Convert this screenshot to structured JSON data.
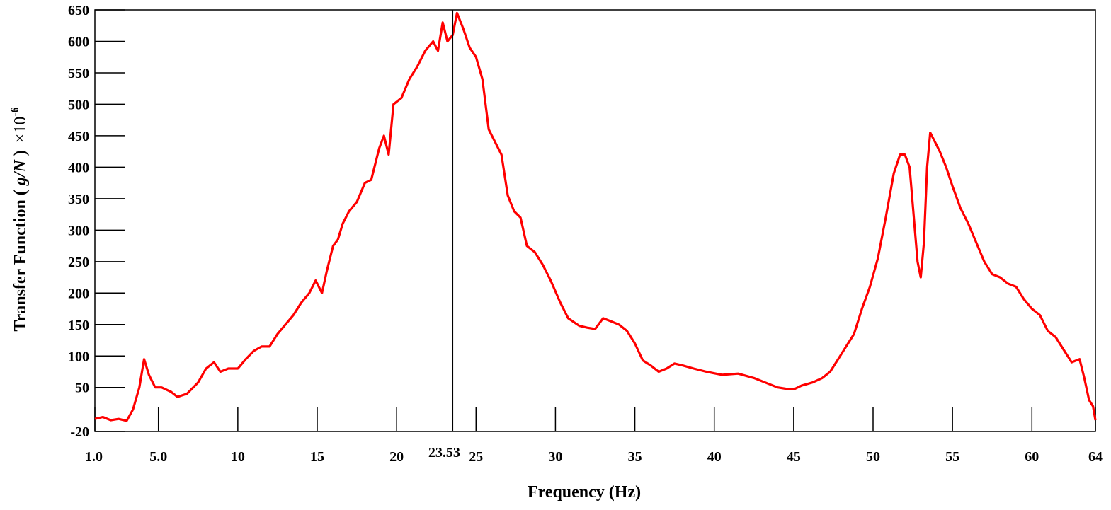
{
  "chart_data": {
    "type": "line",
    "xlabel": "Frequency (Hz)",
    "ylabel_main": "Transfer Function ( ",
    "ylabel_var": "g/N",
    "ylabel_close": " )",
    "ylabel_scale": "×10",
    "ylabel_exp": "-6",
    "xlim": [
      1.0,
      64
    ],
    "ylim": [
      -20,
      650
    ],
    "grid": false,
    "line_color": "#ff0000",
    "x_ticks": [
      {
        "value": 1.0,
        "label": "1.0"
      },
      {
        "value": 5.0,
        "label": "5.0"
      },
      {
        "value": 10,
        "label": "10"
      },
      {
        "value": 15,
        "label": "15"
      },
      {
        "value": 20,
        "label": "20"
      },
      {
        "value": 25,
        "label": "25"
      },
      {
        "value": 30,
        "label": "30"
      },
      {
        "value": 35,
        "label": "35"
      },
      {
        "value": 40,
        "label": "40"
      },
      {
        "value": 45,
        "label": "45"
      },
      {
        "value": 50,
        "label": "50"
      },
      {
        "value": 55,
        "label": "55"
      },
      {
        "value": 60,
        "label": "60"
      },
      {
        "value": 64,
        "label": "64"
      }
    ],
    "y_ticks": [
      {
        "value": -20,
        "label": "-20"
      },
      {
        "value": 50,
        "label": "50"
      },
      {
        "value": 100,
        "label": "100"
      },
      {
        "value": 150,
        "label": "150"
      },
      {
        "value": 200,
        "label": "200"
      },
      {
        "value": 250,
        "label": "250"
      },
      {
        "value": 300,
        "label": "300"
      },
      {
        "value": 350,
        "label": "350"
      },
      {
        "value": 400,
        "label": "400"
      },
      {
        "value": 450,
        "label": "450"
      },
      {
        "value": 500,
        "label": "500"
      },
      {
        "value": 550,
        "label": "550"
      },
      {
        "value": 600,
        "label": "600"
      },
      {
        "value": 650,
        "label": "650"
      }
    ],
    "marker": {
      "x": 23.53,
      "label": "23.53"
    },
    "series": [
      {
        "x": [
          1.0,
          1.5,
          2.0,
          2.5,
          3.0,
          3.4,
          3.8,
          4.1,
          4.4,
          4.8,
          5.2,
          5.8,
          6.2,
          6.8,
          7.5,
          8.0,
          8.5,
          8.9,
          9.4,
          10.0,
          10.5,
          11.0,
          11.5,
          12.0,
          12.5,
          13.0,
          13.5,
          14.0,
          14.5,
          14.9,
          15.3,
          15.6,
          16.0,
          16.3,
          16.6,
          17.0,
          17.5,
          18.0,
          18.4,
          18.9,
          19.2,
          19.5,
          19.8,
          20.3,
          20.8,
          21.3,
          21.8,
          22.3,
          22.6,
          22.9,
          23.2,
          23.53,
          23.8,
          24.2,
          24.6,
          25.0,
          25.4,
          25.8,
          26.2,
          26.6,
          27.0,
          27.4,
          27.8,
          28.2,
          28.7,
          29.2,
          29.7,
          30.3,
          30.8,
          31.5,
          32.0,
          32.5,
          33.0,
          33.5,
          34.0,
          34.5,
          35.0,
          35.5,
          36.0,
          36.5,
          37.0,
          37.5,
          38.0,
          38.7,
          39.5,
          40.5,
          41.5,
          42.5,
          43.5,
          44.0,
          44.5,
          45.0,
          45.5,
          46.2,
          46.8,
          47.3,
          47.8,
          48.3,
          48.8,
          49.3,
          49.8,
          50.3,
          50.8,
          51.3,
          51.7,
          52.0,
          52.3,
          52.6,
          52.8,
          53.0,
          53.2,
          53.4,
          53.6,
          53.9,
          54.2,
          54.6,
          55.0,
          55.5,
          56.0,
          56.5,
          57.0,
          57.5,
          58.0,
          58.5,
          59.0,
          59.5,
          60.0,
          60.5,
          61.0,
          61.5,
          62.0,
          62.5,
          63.0,
          63.3,
          63.6,
          63.85,
          64.0
        ],
        "y": [
          0,
          3,
          -2,
          0,
          -3,
          15,
          50,
          95,
          70,
          50,
          50,
          43,
          35,
          40,
          58,
          80,
          90,
          75,
          80,
          80,
          95,
          108,
          115,
          115,
          135,
          150,
          165,
          185,
          200,
          220,
          200,
          235,
          275,
          285,
          310,
          330,
          345,
          375,
          380,
          430,
          450,
          420,
          500,
          510,
          540,
          560,
          585,
          600,
          585,
          630,
          600,
          610,
          645,
          620,
          590,
          575,
          540,
          460,
          440,
          420,
          355,
          330,
          320,
          275,
          265,
          245,
          220,
          185,
          160,
          148,
          145,
          143,
          160,
          155,
          150,
          140,
          120,
          93,
          85,
          75,
          80,
          88,
          85,
          80,
          75,
          70,
          72,
          65,
          55,
          50,
          48,
          47,
          53,
          58,
          65,
          75,
          95,
          115,
          135,
          175,
          210,
          255,
          320,
          390,
          420,
          420,
          400,
          310,
          250,
          225,
          280,
          400,
          455,
          440,
          425,
          400,
          370,
          335,
          310,
          280,
          250,
          230,
          225,
          215,
          210,
          190,
          175,
          165,
          140,
          130,
          110,
          90,
          95,
          65,
          30,
          20,
          -2
        ]
      }
    ]
  }
}
